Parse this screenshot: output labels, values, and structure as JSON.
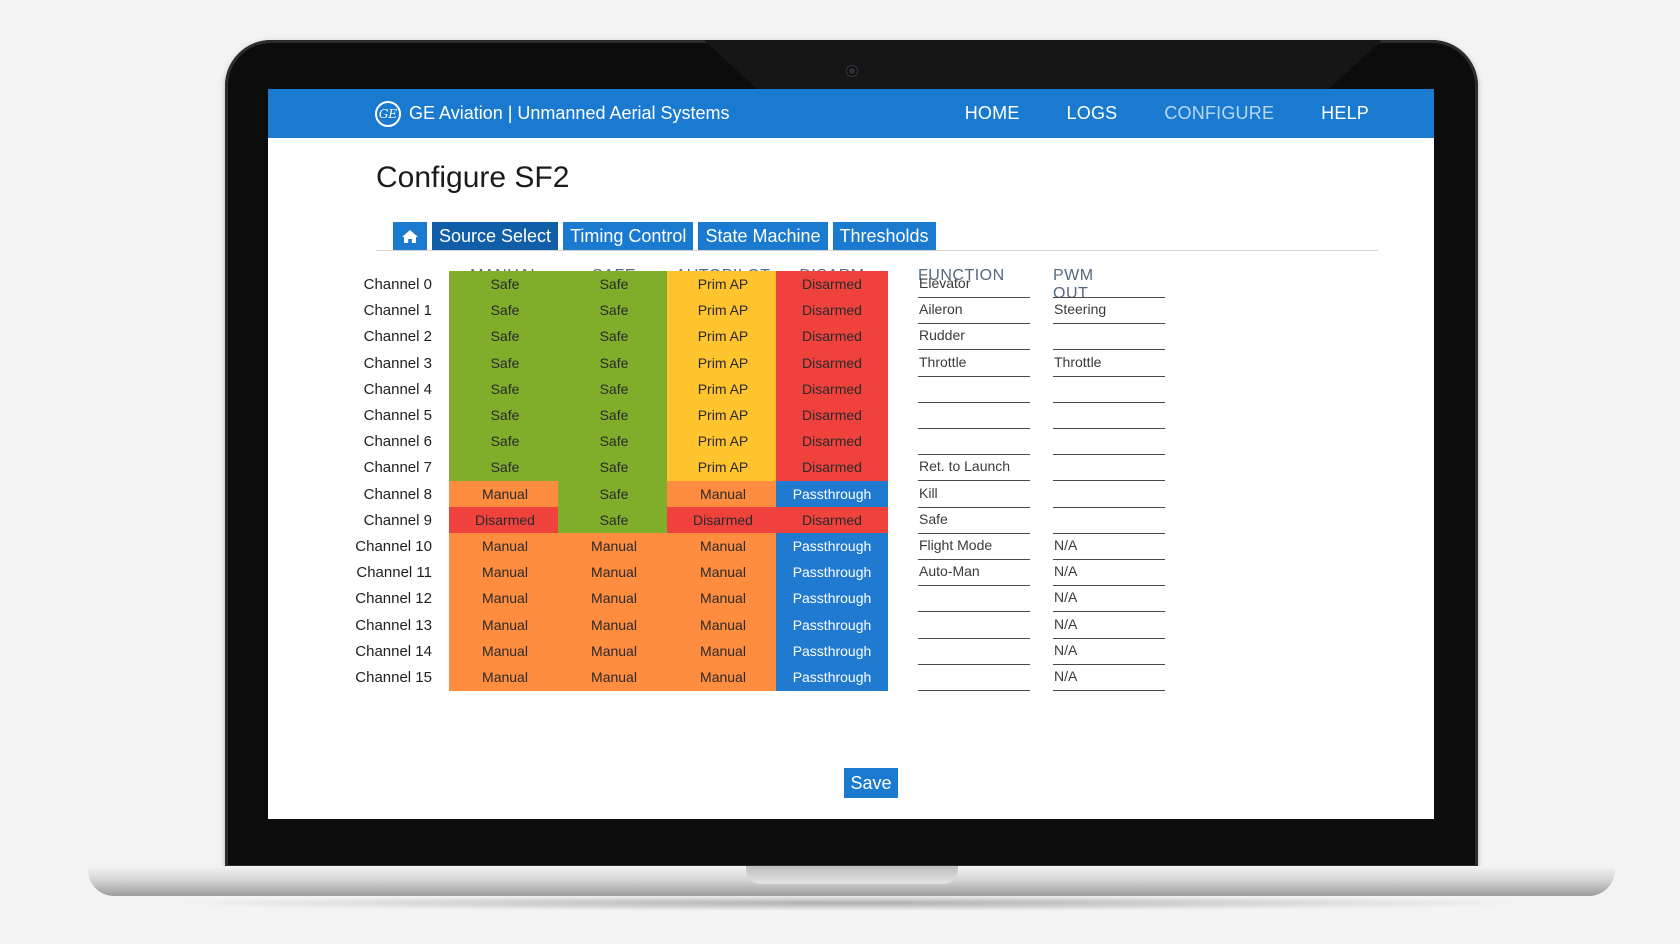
{
  "header": {
    "brand": "GE Aviation | Unmanned Aerial Systems",
    "logo_text": "GE",
    "nav": [
      "HOME",
      "LOGS",
      "CONFIGURE",
      "HELP"
    ],
    "active_nav": "CONFIGURE"
  },
  "page": {
    "title": "Configure SF2",
    "tabs": [
      "Source Select",
      "Timing Control",
      "State Machine",
      "Thresholds"
    ],
    "active_tab": "Source Select",
    "home_icon": "home-icon"
  },
  "table": {
    "columns": [
      "MANUAL",
      "SAFE",
      "AUTOPILOT",
      "DISARM",
      "FUNCTION",
      "PWM OUT"
    ],
    "rows": [
      {
        "channel": "Channel 0",
        "manual": "Safe",
        "safe": "Safe",
        "autopilot": "Prim AP",
        "disarm": "Disarmed",
        "function": "Elevator",
        "pwm_out": ""
      },
      {
        "channel": "Channel 1",
        "manual": "Safe",
        "safe": "Safe",
        "autopilot": "Prim AP",
        "disarm": "Disarmed",
        "function": "Aileron",
        "pwm_out": "Steering"
      },
      {
        "channel": "Channel 2",
        "manual": "Safe",
        "safe": "Safe",
        "autopilot": "Prim AP",
        "disarm": "Disarmed",
        "function": "Rudder",
        "pwm_out": ""
      },
      {
        "channel": "Channel 3",
        "manual": "Safe",
        "safe": "Safe",
        "autopilot": "Prim AP",
        "disarm": "Disarmed",
        "function": "Throttle",
        "pwm_out": "Throttle"
      },
      {
        "channel": "Channel 4",
        "manual": "Safe",
        "safe": "Safe",
        "autopilot": "Prim AP",
        "disarm": "Disarmed",
        "function": "",
        "pwm_out": ""
      },
      {
        "channel": "Channel 5",
        "manual": "Safe",
        "safe": "Safe",
        "autopilot": "Prim AP",
        "disarm": "Disarmed",
        "function": "",
        "pwm_out": ""
      },
      {
        "channel": "Channel 6",
        "manual": "Safe",
        "safe": "Safe",
        "autopilot": "Prim AP",
        "disarm": "Disarmed",
        "function": "",
        "pwm_out": ""
      },
      {
        "channel": "Channel 7",
        "manual": "Safe",
        "safe": "Safe",
        "autopilot": "Prim AP",
        "disarm": "Disarmed",
        "function": "Ret. to Launch",
        "pwm_out": ""
      },
      {
        "channel": "Channel 8",
        "manual": "Manual",
        "safe": "Safe",
        "autopilot": "Manual",
        "disarm": "Passthrough",
        "function": "Kill",
        "pwm_out": ""
      },
      {
        "channel": "Channel 9",
        "manual": "Disarmed",
        "safe": "Safe",
        "autopilot": "Disarmed",
        "disarm": "Disarmed",
        "function": "Safe",
        "pwm_out": ""
      },
      {
        "channel": "Channel 10",
        "manual": "Manual",
        "safe": "Manual",
        "autopilot": "Manual",
        "disarm": "Passthrough",
        "function": "Flight Mode",
        "pwm_out": "N/A"
      },
      {
        "channel": "Channel 11",
        "manual": "Manual",
        "safe": "Manual",
        "autopilot": "Manual",
        "disarm": "Passthrough",
        "function": "Auto-Man",
        "pwm_out": "N/A"
      },
      {
        "channel": "Channel 12",
        "manual": "Manual",
        "safe": "Manual",
        "autopilot": "Manual",
        "disarm": "Passthrough",
        "function": "",
        "pwm_out": "N/A"
      },
      {
        "channel": "Channel 13",
        "manual": "Manual",
        "safe": "Manual",
        "autopilot": "Manual",
        "disarm": "Passthrough",
        "function": "",
        "pwm_out": "N/A"
      },
      {
        "channel": "Channel 14",
        "manual": "Manual",
        "safe": "Manual",
        "autopilot": "Manual",
        "disarm": "Passthrough",
        "function": "",
        "pwm_out": "N/A"
      },
      {
        "channel": "Channel 15",
        "manual": "Manual",
        "safe": "Manual",
        "autopilot": "Manual",
        "disarm": "Passthrough",
        "function": "",
        "pwm_out": "N/A"
      }
    ]
  },
  "status_colors": {
    "Safe": "#80ad2a",
    "Prim AP": "#ffc42e",
    "Disarmed": "#f0423d",
    "Manual": "#ff8d3f",
    "Passthrough": "#1f7ad0"
  },
  "save_label": "Save",
  "accent_color": "#1a7ad0"
}
